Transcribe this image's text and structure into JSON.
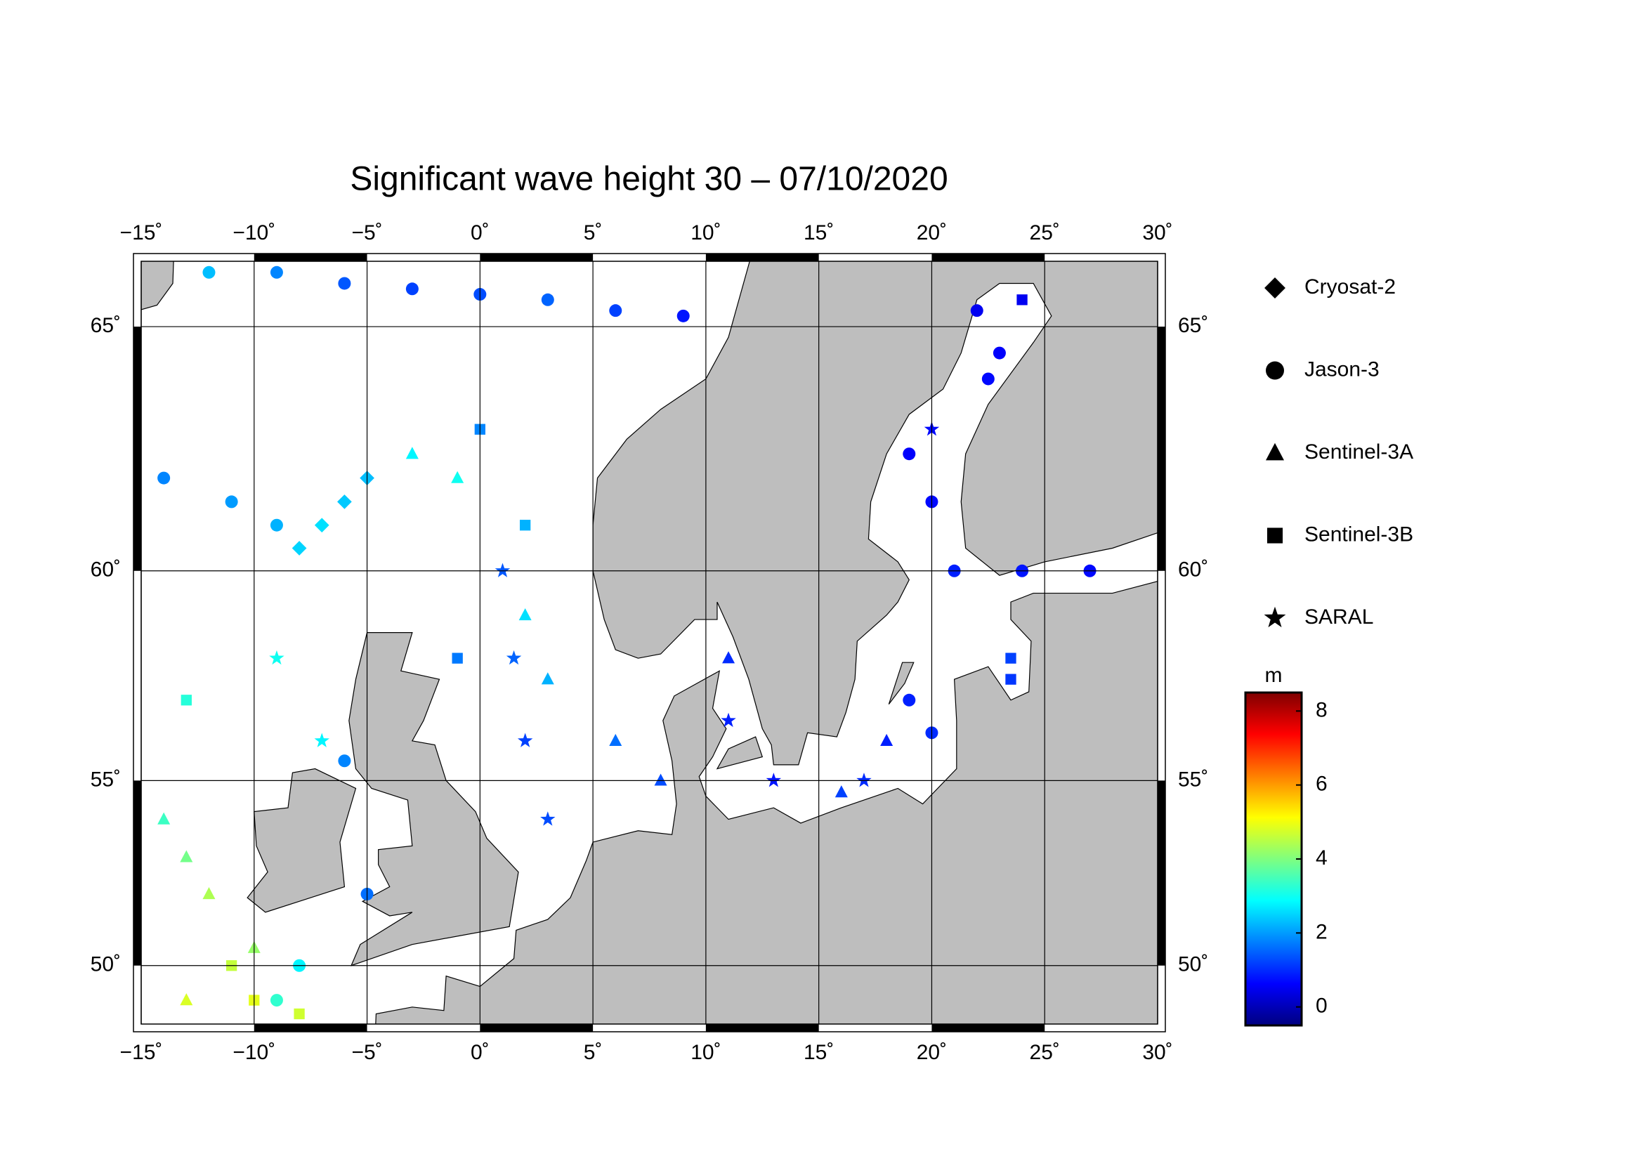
{
  "chart_data": {
    "type": "map",
    "title": "Significant wave height 30 – 07/10/2020",
    "xlim": [
      -15,
      30
    ],
    "ylim": [
      48.3,
      66.2
    ],
    "xticks": [
      {
        "value": -15,
        "label": "−15˚"
      },
      {
        "value": -10,
        "label": "−10˚"
      },
      {
        "value": -5,
        "label": "−5˚"
      },
      {
        "value": 0,
        "label": "0˚"
      },
      {
        "value": 5,
        "label": "5˚"
      },
      {
        "value": 10,
        "label": "10˚"
      },
      {
        "value": 15,
        "label": "15˚"
      },
      {
        "value": 20,
        "label": "20˚"
      },
      {
        "value": 25,
        "label": "25˚"
      },
      {
        "value": 30,
        "label": "30˚"
      }
    ],
    "yticks": [
      {
        "value": 50,
        "label": "50˚"
      },
      {
        "value": 55,
        "label": "55˚"
      },
      {
        "value": 60,
        "label": "60˚"
      },
      {
        "value": 65,
        "label": "65˚"
      }
    ],
    "grid": true,
    "colorbar": {
      "label": "m",
      "clim": [
        -0.5,
        8.5
      ],
      "ticks": [
        0,
        2,
        4,
        6,
        8
      ],
      "colormap": [
        "#00007f",
        "#0000ff",
        "#007fff",
        "#00ffff",
        "#7fff7f",
        "#ffff00",
        "#ff7f00",
        "#ff0000",
        "#7f0000"
      ]
    },
    "series": [
      {
        "name": "Cryosat-2",
        "marker": "diamond",
        "lon": [
          -8,
          -7,
          -6,
          -5
        ],
        "lat": [
          60.5,
          61,
          61.5,
          62
        ],
        "swh": [
          2.5,
          2.6,
          2.4,
          2.3
        ]
      },
      {
        "name": "Jason-3",
        "marker": "circle",
        "lon": [
          -12,
          -9,
          -6,
          -3,
          0,
          3,
          6,
          9,
          22,
          23,
          22.5,
          19,
          20,
          21,
          24,
          27,
          19,
          20,
          -14,
          -11,
          -9,
          -6,
          -5,
          -8,
          -9
        ],
        "lat": [
          66,
          66,
          65.8,
          65.7,
          65.6,
          65.5,
          65.3,
          65.2,
          65.3,
          64.5,
          64,
          62.5,
          61.5,
          60,
          60,
          60,
          57,
          56.2,
          62,
          61.5,
          61,
          55.5,
          52,
          50,
          49
        ],
        "swh": [
          2.3,
          1.8,
          1.4,
          1.2,
          1.3,
          1.5,
          1.2,
          0.8,
          0.5,
          0.6,
          0.7,
          0.6,
          0.7,
          0.9,
          0.8,
          0.7,
          0.9,
          1,
          1.8,
          2,
          2.2,
          1.8,
          1.6,
          2.8,
          3.3
        ]
      },
      {
        "name": "Sentinel-3A",
        "marker": "triangle",
        "lon": [
          -14,
          -13,
          -12,
          -13,
          -10,
          2,
          3,
          6,
          8,
          16,
          18,
          11,
          -3,
          -1
        ],
        "lat": [
          54,
          53,
          52,
          49,
          50.5,
          59,
          57.5,
          56,
          55,
          54.7,
          56,
          58,
          62.5,
          62
        ],
        "swh": [
          3.4,
          3.9,
          4.4,
          4.8,
          4.2,
          2.6,
          2.2,
          1.6,
          1.3,
          1.2,
          0.9,
          1,
          2.8,
          3
        ]
      },
      {
        "name": "Sentinel-3B",
        "marker": "square",
        "lon": [
          -11,
          -10,
          -8,
          -13,
          0,
          2,
          23.5,
          23.5,
          24,
          -1
        ],
        "lat": [
          50,
          49,
          48.6,
          57,
          63,
          61,
          58,
          57.5,
          65.5,
          58
        ],
        "swh": [
          4.6,
          4.9,
          4.7,
          3.2,
          1.8,
          2.2,
          1.2,
          1.1,
          0.5,
          1.7
        ]
      },
      {
        "name": "SARAL",
        "marker": "star",
        "lon": [
          1,
          1.5,
          2,
          3,
          -9,
          -7,
          11,
          13,
          17,
          20
        ],
        "lat": [
          60,
          58,
          56,
          54,
          58,
          56,
          56.5,
          55,
          55,
          63
        ],
        "swh": [
          1.4,
          1.5,
          1.2,
          1.3,
          3,
          2.8,
          0.9,
          0.8,
          1,
          0.7
        ]
      }
    ]
  }
}
